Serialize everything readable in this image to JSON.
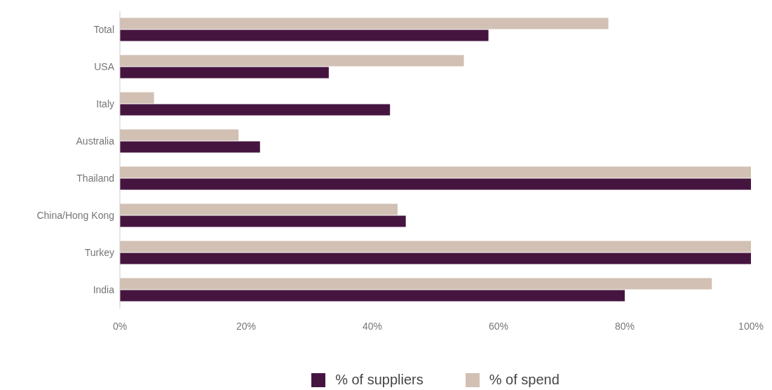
{
  "chart_data": {
    "type": "bar",
    "orientation": "horizontal",
    "categories": [
      "Total",
      "USA",
      "Italy",
      "Australia",
      "Thailand",
      "China/Hong Kong",
      "Turkey",
      "India"
    ],
    "series": [
      {
        "name": "% of suppliers",
        "color": "#45153f",
        "values": [
          58.4,
          33.1,
          42.8,
          22.2,
          100,
          45.3,
          100,
          80.0
        ]
      },
      {
        "name": "% of spend",
        "color": "#d1c0b3",
        "values": [
          77.4,
          54.5,
          5.4,
          18.8,
          100,
          44.0,
          100,
          93.8
        ]
      }
    ],
    "xlim": [
      0,
      100
    ],
    "xticks": [
      {
        "value": 0,
        "label": "0%"
      },
      {
        "value": 20,
        "label": "20%"
      },
      {
        "value": 40,
        "label": "40%"
      },
      {
        "value": 60,
        "label": "60%"
      },
      {
        "value": 80,
        "label": "80%"
      },
      {
        "value": 100,
        "label": "100%"
      }
    ],
    "grid": false,
    "legend": "bottom"
  }
}
